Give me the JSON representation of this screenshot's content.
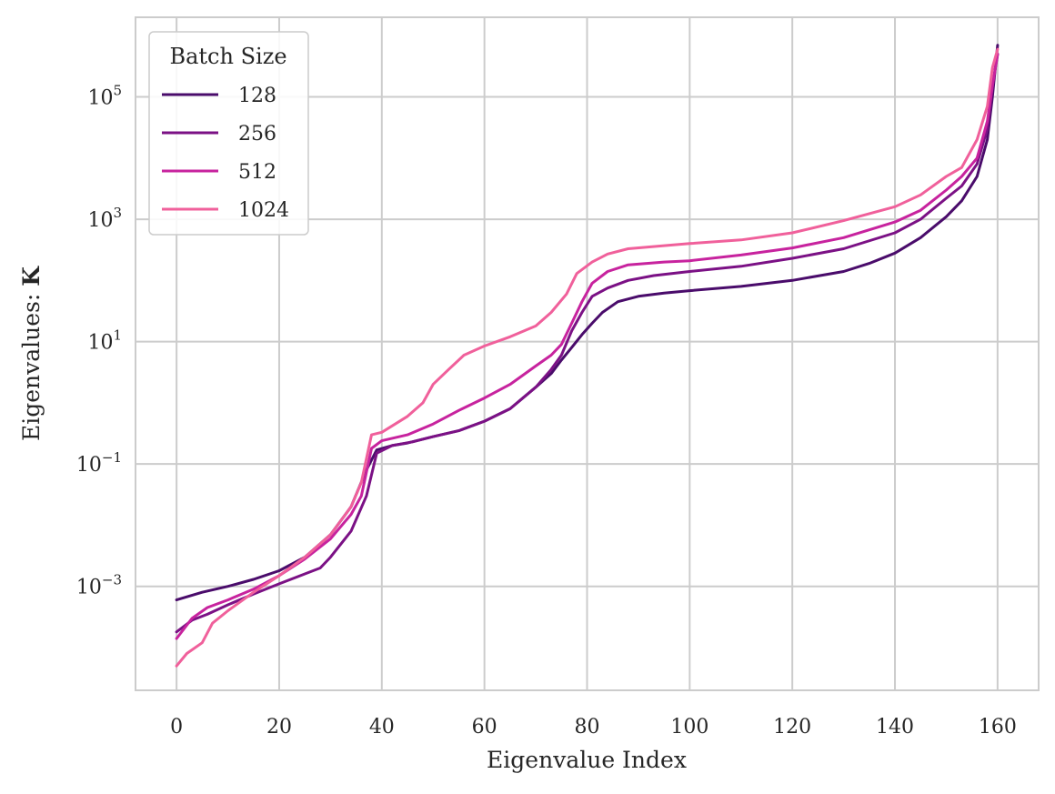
{
  "chart_data": {
    "type": "line",
    "xlabel": "Eigenvalue Index",
    "ylabel": "Eigenvalues: ",
    "ylabel_bold": "K",
    "y_scale": "log",
    "xlim": [
      -8,
      168
    ],
    "ylim": [
      2e-05,
      2000000
    ],
    "x_ticks": [
      0,
      20,
      40,
      60,
      80,
      100,
      120,
      140,
      160
    ],
    "y_ticks": [
      {
        "value": 0.001,
        "base": "10",
        "exp": "−3"
      },
      {
        "value": 0.1,
        "base": "10",
        "exp": "−1"
      },
      {
        "value": 10,
        "base": "10",
        "exp": "1"
      },
      {
        "value": 1000,
        "base": "10",
        "exp": "3"
      },
      {
        "value": 100000,
        "base": "10",
        "exp": "5"
      }
    ],
    "grid": true,
    "legend": {
      "title": "Batch Size",
      "placement": "top-left"
    },
    "series": [
      {
        "name": "128",
        "color": "#4a0c6b",
        "points": [
          [
            0,
            0.0006
          ],
          [
            5,
            0.0008
          ],
          [
            10,
            0.001
          ],
          [
            15,
            0.0013
          ],
          [
            20,
            0.0018
          ],
          [
            25,
            0.003
          ],
          [
            30,
            0.007
          ],
          [
            34,
            0.02
          ],
          [
            37,
            0.08
          ],
          [
            39,
            0.17
          ],
          [
            42,
            0.2
          ],
          [
            45,
            0.22
          ],
          [
            50,
            0.28
          ],
          [
            55,
            0.35
          ],
          [
            60,
            0.5
          ],
          [
            65,
            0.8
          ],
          [
            70,
            1.8
          ],
          [
            73,
            3
          ],
          [
            75,
            5
          ],
          [
            77,
            8
          ],
          [
            79,
            13
          ],
          [
            81,
            20
          ],
          [
            83,
            30
          ],
          [
            86,
            45
          ],
          [
            90,
            55
          ],
          [
            95,
            62
          ],
          [
            100,
            68
          ],
          [
            110,
            80
          ],
          [
            120,
            100
          ],
          [
            130,
            140
          ],
          [
            135,
            190
          ],
          [
            140,
            280
          ],
          [
            145,
            500
          ],
          [
            150,
            1100
          ],
          [
            153,
            2000
          ],
          [
            156,
            5000
          ],
          [
            158,
            20000
          ],
          [
            159,
            100000
          ],
          [
            160,
            700000
          ]
        ]
      },
      {
        "name": "256",
        "color": "#7b1185",
        "points": [
          [
            0,
            0.00018
          ],
          [
            3,
            0.00028
          ],
          [
            6,
            0.00035
          ],
          [
            10,
            0.0005
          ],
          [
            15,
            0.00075
          ],
          [
            20,
            0.0011
          ],
          [
            25,
            0.0016
          ],
          [
            28,
            0.002
          ],
          [
            30,
            0.003
          ],
          [
            34,
            0.008
          ],
          [
            37,
            0.03
          ],
          [
            39,
            0.15
          ],
          [
            42,
            0.2
          ],
          [
            46,
            0.23
          ],
          [
            50,
            0.28
          ],
          [
            55,
            0.35
          ],
          [
            60,
            0.5
          ],
          [
            65,
            0.8
          ],
          [
            70,
            1.8
          ],
          [
            73,
            3.5
          ],
          [
            75,
            6
          ],
          [
            77,
            15
          ],
          [
            79,
            30
          ],
          [
            81,
            55
          ],
          [
            84,
            75
          ],
          [
            88,
            100
          ],
          [
            93,
            120
          ],
          [
            100,
            140
          ],
          [
            110,
            170
          ],
          [
            120,
            230
          ],
          [
            130,
            330
          ],
          [
            140,
            600
          ],
          [
            145,
            1000
          ],
          [
            150,
            2200
          ],
          [
            153,
            3500
          ],
          [
            156,
            8000
          ],
          [
            158,
            30000
          ],
          [
            159,
            150000
          ],
          [
            160,
            500000
          ]
        ]
      },
      {
        "name": "512",
        "color": "#c7239e",
        "points": [
          [
            0,
            0.00014
          ],
          [
            3,
            0.0003
          ],
          [
            6,
            0.00045
          ],
          [
            10,
            0.0006
          ],
          [
            15,
            0.0009
          ],
          [
            20,
            0.0015
          ],
          [
            25,
            0.0028
          ],
          [
            30,
            0.006
          ],
          [
            34,
            0.015
          ],
          [
            36,
            0.03
          ],
          [
            38,
            0.18
          ],
          [
            40,
            0.24
          ],
          [
            45,
            0.3
          ],
          [
            50,
            0.45
          ],
          [
            55,
            0.75
          ],
          [
            60,
            1.2
          ],
          [
            65,
            2
          ],
          [
            70,
            4
          ],
          [
            73,
            6
          ],
          [
            75,
            9
          ],
          [
            77,
            20
          ],
          [
            79,
            45
          ],
          [
            81,
            90
          ],
          [
            84,
            140
          ],
          [
            88,
            180
          ],
          [
            95,
            200
          ],
          [
            100,
            210
          ],
          [
            110,
            260
          ],
          [
            120,
            340
          ],
          [
            130,
            500
          ],
          [
            140,
            900
          ],
          [
            145,
            1400
          ],
          [
            150,
            3000
          ],
          [
            153,
            5000
          ],
          [
            156,
            10000
          ],
          [
            158,
            40000
          ],
          [
            159,
            150000
          ],
          [
            160,
            500000
          ]
        ]
      },
      {
        "name": "1024",
        "color": "#f0609b",
        "points": [
          [
            0,
            5e-05
          ],
          [
            2,
            8e-05
          ],
          [
            5,
            0.00012
          ],
          [
            7,
            0.00025
          ],
          [
            10,
            0.0004
          ],
          [
            15,
            0.0008
          ],
          [
            20,
            0.0015
          ],
          [
            25,
            0.003
          ],
          [
            30,
            0.007
          ],
          [
            34,
            0.02
          ],
          [
            36,
            0.05
          ],
          [
            38,
            0.3
          ],
          [
            40,
            0.33
          ],
          [
            45,
            0.6
          ],
          [
            48,
            1
          ],
          [
            50,
            2
          ],
          [
            53,
            3.5
          ],
          [
            56,
            6
          ],
          [
            60,
            8.5
          ],
          [
            65,
            12
          ],
          [
            70,
            18
          ],
          [
            73,
            30
          ],
          [
            76,
            60
          ],
          [
            78,
            130
          ],
          [
            81,
            200
          ],
          [
            84,
            270
          ],
          [
            88,
            330
          ],
          [
            95,
            370
          ],
          [
            100,
            400
          ],
          [
            110,
            460
          ],
          [
            120,
            600
          ],
          [
            130,
            950
          ],
          [
            140,
            1600
          ],
          [
            145,
            2500
          ],
          [
            150,
            5000
          ],
          [
            153,
            7000
          ],
          [
            156,
            20000
          ],
          [
            158,
            70000
          ],
          [
            159,
            300000
          ],
          [
            160,
            600000
          ]
        ]
      }
    ]
  }
}
